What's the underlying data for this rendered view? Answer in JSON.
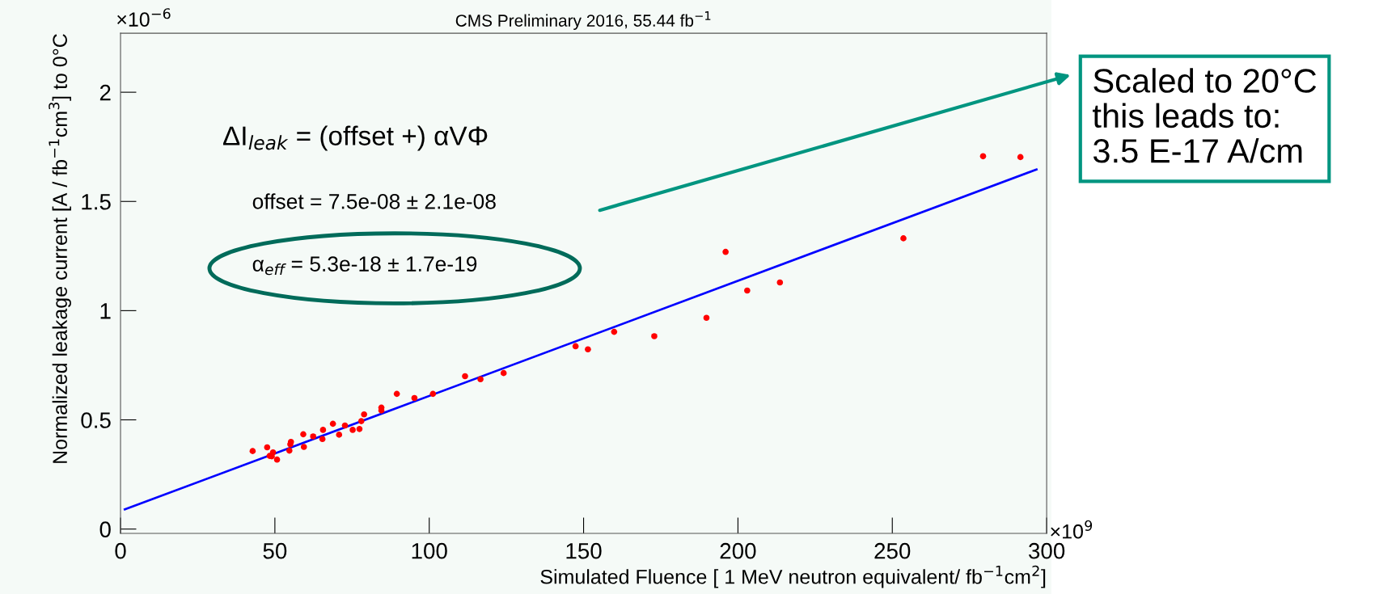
{
  "chart_data": {
    "type": "scatter",
    "title": "CMS Preliminary 2016, 55.44 fb$^{−1}$",
    "xlabel": "Simulated Fluence [ 1 MeV neutron equivalent/ fb$^{−1}$cm$^{2}$]",
    "ylabel": "Normalized leakage current [A / fb$^{−1}$cm$^{3}$] to 0°C",
    "annotations": [
      "×10$^{−6}$",
      "×10$^{9}$",
      "ΔI$_{leak}$ = (offset +) αVΦ",
      "offset = 7.5e-08 ± 2.1e-08",
      "α$_{eff}$ = 5.3e-18 ± 1.7e-19",
      "Scaled to 20°C\nthis leads to:\n3.5 E-17 A/cm"
    ],
    "series": [
      {
        "marker": "circle",
        "color": "#ff0000",
        "x": [
          42.8,
          47.5,
          48.3,
          49.4,
          49.0,
          50.7,
          54.7,
          55.0,
          55.2,
          59.2,
          59.4,
          62.4,
          65.4,
          65.6,
          68.8,
          70.8,
          72.7,
          75.2,
          77.4,
          78.0,
          78.9,
          84.5,
          84.5,
          89.5,
          95.2,
          101.2,
          111.6,
          116.6,
          124.1,
          147.4,
          151.4,
          159.9,
          172.9,
          189.8,
          196.0,
          203.0,
          213.6,
          253.6,
          279.4,
          291.5
        ],
        "values": [
          0.357,
          0.374,
          0.335,
          0.351,
          0.333,
          0.318,
          0.359,
          0.388,
          0.399,
          0.434,
          0.376,
          0.424,
          0.412,
          0.454,
          0.482,
          0.432,
          0.474,
          0.454,
          0.458,
          0.494,
          0.525,
          0.543,
          0.556,
          0.619,
          0.6,
          0.619,
          0.7,
          0.686,
          0.714,
          0.837,
          0.823,
          0.903,
          0.883,
          0.967,
          1.269,
          1.092,
          1.129,
          1.331,
          1.707,
          1.703
        ]
      },
      {
        "type": "line",
        "color": "#0000ff",
        "x": [
          1.4,
          296.7
        ],
        "values": [
          0.09,
          1.646
        ]
      }
    ],
    "xlim": [
      0,
      300
    ],
    "ylim": [
      -0.02,
      2.27
    ],
    "xticks": [
      0,
      50,
      100,
      150,
      200,
      250,
      300
    ],
    "yticks": [
      0,
      0.5,
      1,
      1.5,
      2
    ],
    "grid": false,
    "legend": false
  }
}
